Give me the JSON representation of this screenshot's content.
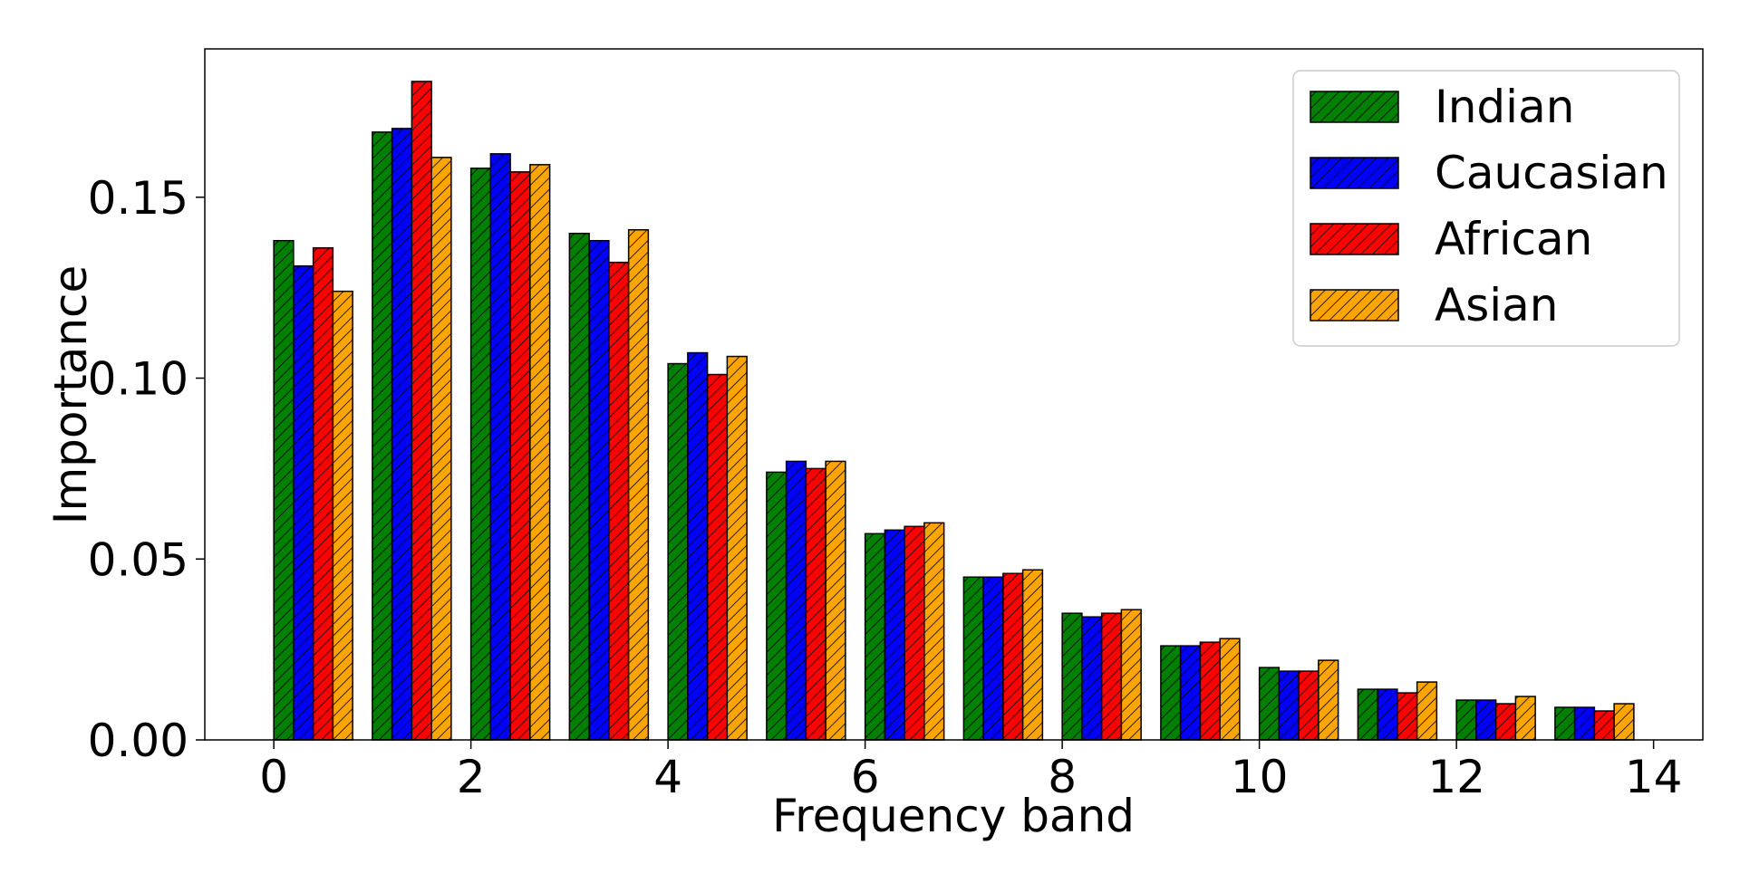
{
  "chart_data": {
    "type": "bar",
    "title": "",
    "xlabel": "Frequency band",
    "ylabel": "Importance",
    "xlim": [
      -0.7,
      14.5
    ],
    "ylim": [
      0,
      0.191
    ],
    "x_ticks": [
      "0",
      "2",
      "4",
      "6",
      "8",
      "10",
      "12",
      "14"
    ],
    "y_ticks": [
      "0.00",
      "0.05",
      "0.10",
      "0.15"
    ],
    "legend_position": "top-right",
    "bar_pattern": "diagonal-hatch",
    "categories": [
      0,
      1,
      2,
      3,
      4,
      5,
      6,
      7,
      8,
      9,
      10,
      11,
      12,
      13
    ],
    "series": [
      {
        "name": "Indian",
        "color": "#008000",
        "values": [
          0.138,
          0.168,
          0.158,
          0.14,
          0.104,
          0.074,
          0.057,
          0.045,
          0.035,
          0.026,
          0.02,
          0.014,
          0.011,
          0.009
        ]
      },
      {
        "name": "Caucasian",
        "color": "#0000ff",
        "values": [
          0.131,
          0.169,
          0.162,
          0.138,
          0.107,
          0.077,
          0.058,
          0.045,
          0.034,
          0.026,
          0.019,
          0.014,
          0.011,
          0.009
        ]
      },
      {
        "name": "African",
        "color": "#ff0000",
        "values": [
          0.136,
          0.182,
          0.157,
          0.132,
          0.101,
          0.075,
          0.059,
          0.046,
          0.035,
          0.027,
          0.019,
          0.013,
          0.01,
          0.008
        ]
      },
      {
        "name": "Asian",
        "color": "#ffa500",
        "values": [
          0.124,
          0.161,
          0.159,
          0.141,
          0.106,
          0.077,
          0.06,
          0.047,
          0.036,
          0.028,
          0.022,
          0.016,
          0.012,
          0.01
        ]
      }
    ]
  }
}
